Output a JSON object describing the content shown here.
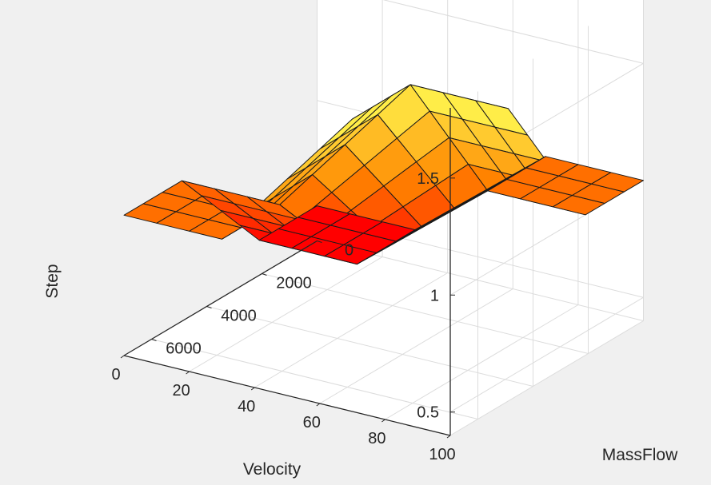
{
  "chart_data": {
    "type": "surface",
    "title": "",
    "xlabel": "Velocity",
    "ylabel": "MassFlow",
    "zlabel": "Step",
    "x_ticks": [
      "0",
      "20",
      "40",
      "60",
      "80",
      "100"
    ],
    "y_ticks": [
      "0",
      "2000",
      "4000",
      "6000"
    ],
    "z_ticks": [
      "0.5",
      "1",
      "1.5"
    ],
    "xlim": [
      0,
      100
    ],
    "ylim": [
      0,
      7000
    ],
    "zlim": [
      0.4,
      1.8
    ],
    "grid": true,
    "colormap": [
      "#ff0000",
      "#ff8800",
      "#ffff55"
    ],
    "x": [
      0,
      10,
      20,
      30,
      40,
      50,
      60,
      70,
      80,
      90,
      100
    ],
    "y": [
      0,
      700,
      1400,
      2100,
      2800,
      3500,
      4200,
      4900,
      5600,
      6300,
      7000
    ],
    "z_description": "Step surface: 1.0 plateau where velocity > 50 and mass flow < 3500, or velocity < 50 and mass flow > 3500; rises to about 1.65 for high velocity with high mass flow; falls to about 0.55 for low velocity with low mass flow, with a sloped transition along the diagonal",
    "z_levels": {
      "low": 0.55,
      "mid": 1.0,
      "high": 1.65
    }
  }
}
